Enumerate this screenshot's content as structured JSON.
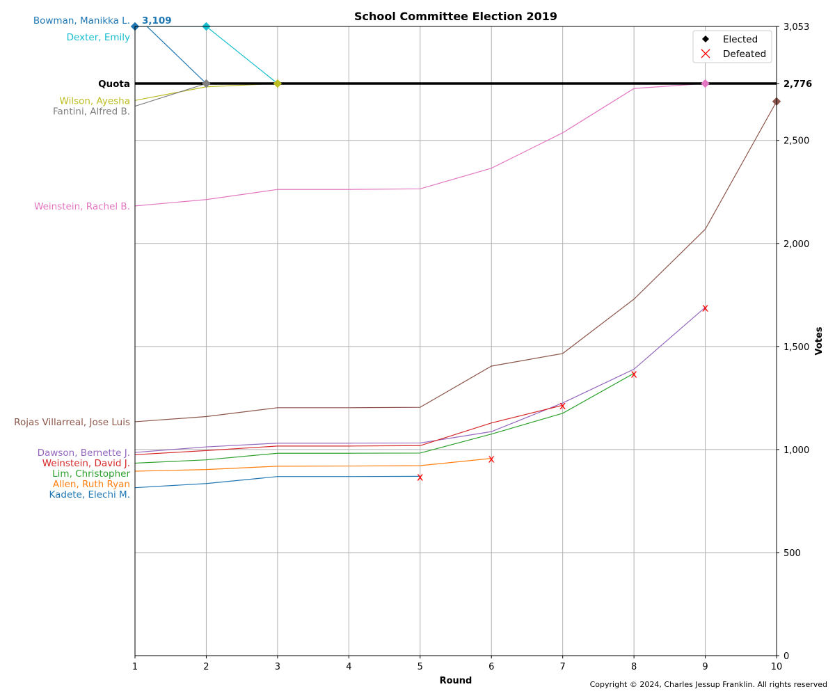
{
  "chart_data": {
    "type": "line",
    "title": "School Committee Election 2019",
    "xlabel": "Round",
    "ylabel": "Votes",
    "x": [
      1,
      2,
      3,
      4,
      5,
      6,
      7,
      8,
      9,
      10
    ],
    "xlim": [
      1,
      10
    ],
    "ylim": [
      0,
      3053
    ],
    "y_ticks": [
      0,
      500,
      1000,
      1500,
      2000,
      2500,
      2776,
      3053
    ],
    "y_tick_labels": [
      "0",
      "500",
      "1,000",
      "1,500",
      "2,000",
      "2,500",
      "2,776",
      "3,053"
    ],
    "grid": true,
    "quota": {
      "label": "Quota",
      "value": 2776,
      "value_label": "2,776"
    },
    "max_annotation": "3,109",
    "legend": {
      "position": "top-right",
      "entries": [
        {
          "label": "Elected",
          "marker": "diamond",
          "color": "#000000"
        },
        {
          "label": "Defeated",
          "marker": "x",
          "color": "#ff0000"
        }
      ]
    },
    "series": [
      {
        "name": "Bowman, Manikka L.",
        "color": "#1f77b4",
        "x": [
          1,
          2
        ],
        "values": [
          3109,
          2776
        ],
        "elected_round": 1,
        "label_value": 3053
      },
      {
        "name": "Dexter, Emily",
        "color": "#17becf",
        "x": [
          1,
          2,
          3
        ],
        "values": [
          3053,
          3053,
          2776
        ],
        "elected_round": 2
      },
      {
        "name": "Wilson, Ayesha",
        "color": "#bcbd22",
        "x": [
          1,
          2,
          3
        ],
        "values": [
          2694,
          2760,
          2776
        ],
        "elected_round": 3
      },
      {
        "name": "Fantini, Alfred B.",
        "color": "#7f7f7f",
        "x": [
          1,
          2
        ],
        "values": [
          2666,
          2776
        ],
        "elected_round": 2
      },
      {
        "name": "Weinstein, Rachel B.",
        "color": "#e377c2",
        "x": [
          1,
          2,
          3,
          4,
          5,
          6,
          7,
          8,
          9
        ],
        "values": [
          2182,
          2213,
          2262,
          2262,
          2265,
          2365,
          2537,
          2752,
          2776
        ],
        "elected_round": 9
      },
      {
        "name": "Rojas Villarreal, Jose Luis",
        "color": "#8c564b",
        "x": [
          1,
          2,
          3,
          4,
          5,
          6,
          7,
          8,
          9,
          10
        ],
        "values": [
          1135,
          1160,
          1203,
          1203,
          1205,
          1405,
          1466,
          1730,
          2069,
          2689
        ],
        "elected_round": 10
      },
      {
        "name": "Dawson, Bernette J.",
        "color": "#9467bd",
        "x": [
          1,
          2,
          3,
          4,
          5,
          6,
          7,
          8,
          9
        ],
        "values": [
          986,
          1013,
          1031,
          1031,
          1032,
          1087,
          1226,
          1390,
          1690
        ],
        "defeated_round": 9
      },
      {
        "name": "Weinstein, David J.",
        "color": "#d62728",
        "x": [
          1,
          2,
          3,
          4,
          5,
          6,
          7
        ],
        "values": [
          975,
          995,
          1017,
          1017,
          1019,
          1129,
          1215
        ],
        "defeated_round": 7
      },
      {
        "name": "Lim, Christopher",
        "color": "#2ca02c",
        "x": [
          1,
          2,
          3,
          4,
          5,
          6,
          7,
          8
        ],
        "values": [
          934,
          950,
          982,
          982,
          983,
          1075,
          1176,
          1370
        ],
        "defeated_round": 8
      },
      {
        "name": "Allen, Ruth Ryan",
        "color": "#ff7f0e",
        "x": [
          1,
          2,
          3,
          4,
          5,
          6
        ],
        "values": [
          895,
          903,
          919,
          920,
          922,
          957
        ],
        "defeated_round": 6
      },
      {
        "name": "Kadete, Elechi M.",
        "color": "#1f77b4",
        "x": [
          1,
          2,
          3,
          4,
          5
        ],
        "values": [
          815,
          835,
          869,
          869,
          870
        ],
        "defeated_round": 5
      }
    ]
  },
  "copyright": "Copyright © 2024, Charles Jessup Franklin. All rights reserved"
}
